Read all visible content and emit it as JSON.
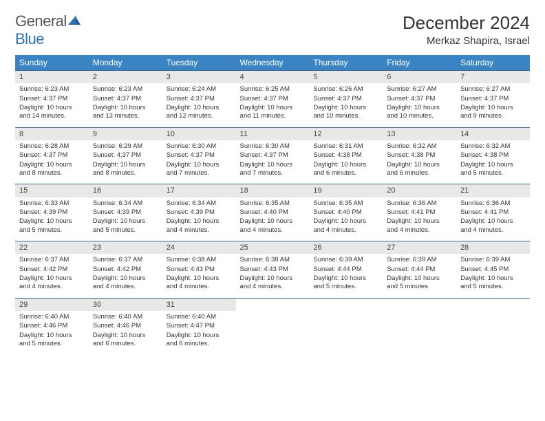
{
  "logo": {
    "text1": "General",
    "text2": "Blue"
  },
  "title": "December 2024",
  "location": "Merkaz Shapira, Israel",
  "colors": {
    "header_bg": "#3b84c4",
    "header_text": "#ffffff",
    "row_border": "#3b6d9b",
    "daynum_bg": "#e8e8e8",
    "logo_blue": "#2d72b8",
    "body_text": "#333333"
  },
  "weekdays": [
    "Sunday",
    "Monday",
    "Tuesday",
    "Wednesday",
    "Thursday",
    "Friday",
    "Saturday"
  ],
  "days": [
    {
      "n": "1",
      "sr": "6:23 AM",
      "ss": "4:37 PM",
      "dl": "10 hours and 14 minutes."
    },
    {
      "n": "2",
      "sr": "6:23 AM",
      "ss": "4:37 PM",
      "dl": "10 hours and 13 minutes."
    },
    {
      "n": "3",
      "sr": "6:24 AM",
      "ss": "4:37 PM",
      "dl": "10 hours and 12 minutes."
    },
    {
      "n": "4",
      "sr": "6:25 AM",
      "ss": "4:37 PM",
      "dl": "10 hours and 11 minutes."
    },
    {
      "n": "5",
      "sr": "6:26 AM",
      "ss": "4:37 PM",
      "dl": "10 hours and 10 minutes."
    },
    {
      "n": "6",
      "sr": "6:27 AM",
      "ss": "4:37 PM",
      "dl": "10 hours and 10 minutes."
    },
    {
      "n": "7",
      "sr": "6:27 AM",
      "ss": "4:37 PM",
      "dl": "10 hours and 9 minutes."
    },
    {
      "n": "8",
      "sr": "6:28 AM",
      "ss": "4:37 PM",
      "dl": "10 hours and 8 minutes."
    },
    {
      "n": "9",
      "sr": "6:29 AM",
      "ss": "4:37 PM",
      "dl": "10 hours and 8 minutes."
    },
    {
      "n": "10",
      "sr": "6:30 AM",
      "ss": "4:37 PM",
      "dl": "10 hours and 7 minutes."
    },
    {
      "n": "11",
      "sr": "6:30 AM",
      "ss": "4:37 PM",
      "dl": "10 hours and 7 minutes."
    },
    {
      "n": "12",
      "sr": "6:31 AM",
      "ss": "4:38 PM",
      "dl": "10 hours and 6 minutes."
    },
    {
      "n": "13",
      "sr": "6:32 AM",
      "ss": "4:38 PM",
      "dl": "10 hours and 6 minutes."
    },
    {
      "n": "14",
      "sr": "6:32 AM",
      "ss": "4:38 PM",
      "dl": "10 hours and 5 minutes."
    },
    {
      "n": "15",
      "sr": "6:33 AM",
      "ss": "4:39 PM",
      "dl": "10 hours and 5 minutes."
    },
    {
      "n": "16",
      "sr": "6:34 AM",
      "ss": "4:39 PM",
      "dl": "10 hours and 5 minutes."
    },
    {
      "n": "17",
      "sr": "6:34 AM",
      "ss": "4:39 PM",
      "dl": "10 hours and 4 minutes."
    },
    {
      "n": "18",
      "sr": "6:35 AM",
      "ss": "4:40 PM",
      "dl": "10 hours and 4 minutes."
    },
    {
      "n": "19",
      "sr": "6:35 AM",
      "ss": "4:40 PM",
      "dl": "10 hours and 4 minutes."
    },
    {
      "n": "20",
      "sr": "6:36 AM",
      "ss": "4:41 PM",
      "dl": "10 hours and 4 minutes."
    },
    {
      "n": "21",
      "sr": "6:36 AM",
      "ss": "4:41 PM",
      "dl": "10 hours and 4 minutes."
    },
    {
      "n": "22",
      "sr": "6:37 AM",
      "ss": "4:42 PM",
      "dl": "10 hours and 4 minutes."
    },
    {
      "n": "23",
      "sr": "6:37 AM",
      "ss": "4:42 PM",
      "dl": "10 hours and 4 minutes."
    },
    {
      "n": "24",
      "sr": "6:38 AM",
      "ss": "4:43 PM",
      "dl": "10 hours and 4 minutes."
    },
    {
      "n": "25",
      "sr": "6:38 AM",
      "ss": "4:43 PM",
      "dl": "10 hours and 4 minutes."
    },
    {
      "n": "26",
      "sr": "6:39 AM",
      "ss": "4:44 PM",
      "dl": "10 hours and 5 minutes."
    },
    {
      "n": "27",
      "sr": "6:39 AM",
      "ss": "4:44 PM",
      "dl": "10 hours and 5 minutes."
    },
    {
      "n": "28",
      "sr": "6:39 AM",
      "ss": "4:45 PM",
      "dl": "10 hours and 5 minutes."
    },
    {
      "n": "29",
      "sr": "6:40 AM",
      "ss": "4:46 PM",
      "dl": "10 hours and 5 minutes."
    },
    {
      "n": "30",
      "sr": "6:40 AM",
      "ss": "4:46 PM",
      "dl": "10 hours and 6 minutes."
    },
    {
      "n": "31",
      "sr": "6:40 AM",
      "ss": "4:47 PM",
      "dl": "10 hours and 6 minutes."
    }
  ],
  "labels": {
    "sunrise": "Sunrise: ",
    "sunset": "Sunset: ",
    "daylight": "Daylight: "
  }
}
